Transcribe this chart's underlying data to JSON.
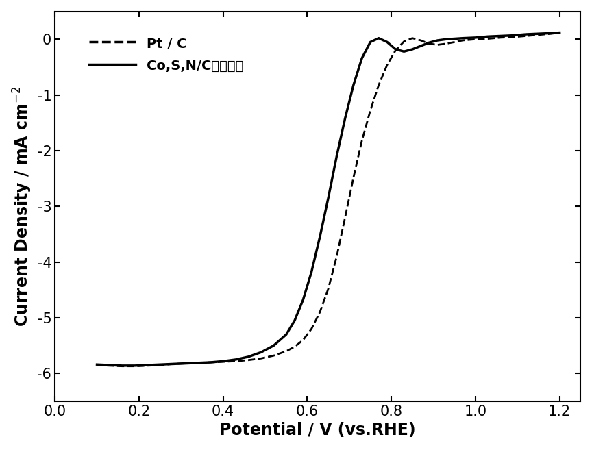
{
  "xlabel": "Potential / V (vs.RHE)",
  "ylabel": "Current Density / mA cm$^{-2}$",
  "xlim": [
    0.05,
    1.25
  ],
  "ylim": [
    -6.5,
    0.5
  ],
  "xticks": [
    0.0,
    0.2,
    0.4,
    0.6,
    0.8,
    1.0,
    1.2
  ],
  "yticks": [
    -6,
    -5,
    -4,
    -3,
    -2,
    -1,
    0
  ],
  "legend_labels": [
    "Pt / C",
    "Co,S,N/C复合材料"
  ],
  "line_color": "#000000",
  "background_color": "#ffffff",
  "pt_c_x": [
    0.1,
    0.13,
    0.16,
    0.19,
    0.22,
    0.25,
    0.28,
    0.31,
    0.34,
    0.37,
    0.4,
    0.43,
    0.46,
    0.49,
    0.52,
    0.55,
    0.57,
    0.59,
    0.61,
    0.63,
    0.65,
    0.67,
    0.69,
    0.71,
    0.73,
    0.75,
    0.77,
    0.79,
    0.81,
    0.83,
    0.85,
    0.87,
    0.89,
    0.91,
    0.93,
    0.95,
    0.97,
    1.0,
    1.03,
    1.06,
    1.09,
    1.12,
    1.15,
    1.18,
    1.2
  ],
  "pt_c_y": [
    -5.85,
    -5.86,
    -5.87,
    -5.87,
    -5.86,
    -5.85,
    -5.83,
    -5.82,
    -5.81,
    -5.8,
    -5.79,
    -5.78,
    -5.76,
    -5.73,
    -5.68,
    -5.6,
    -5.52,
    -5.4,
    -5.2,
    -4.9,
    -4.48,
    -3.9,
    -3.2,
    -2.48,
    -1.82,
    -1.28,
    -0.82,
    -0.46,
    -0.2,
    -0.04,
    0.02,
    -0.02,
    -0.08,
    -0.1,
    -0.08,
    -0.05,
    -0.02,
    0.0,
    0.01,
    0.03,
    0.04,
    0.06,
    0.08,
    0.1,
    0.12
  ],
  "cosnc_x": [
    0.1,
    0.13,
    0.16,
    0.19,
    0.22,
    0.25,
    0.28,
    0.31,
    0.34,
    0.37,
    0.4,
    0.43,
    0.46,
    0.49,
    0.52,
    0.55,
    0.57,
    0.59,
    0.61,
    0.63,
    0.65,
    0.67,
    0.69,
    0.71,
    0.73,
    0.75,
    0.77,
    0.79,
    0.81,
    0.83,
    0.85,
    0.87,
    0.89,
    0.91,
    0.93,
    0.95,
    0.97,
    1.0,
    1.03,
    1.06,
    1.09,
    1.12,
    1.15,
    1.18,
    1.2
  ],
  "cosnc_y": [
    -5.84,
    -5.85,
    -5.86,
    -5.86,
    -5.85,
    -5.84,
    -5.83,
    -5.82,
    -5.81,
    -5.8,
    -5.78,
    -5.75,
    -5.7,
    -5.62,
    -5.5,
    -5.3,
    -5.05,
    -4.68,
    -4.18,
    -3.55,
    -2.85,
    -2.1,
    -1.42,
    -0.82,
    -0.34,
    -0.05,
    0.02,
    -0.05,
    -0.18,
    -0.22,
    -0.18,
    -0.12,
    -0.06,
    -0.02,
    0.0,
    0.01,
    0.02,
    0.03,
    0.05,
    0.06,
    0.07,
    0.09,
    0.1,
    0.11,
    0.12
  ]
}
